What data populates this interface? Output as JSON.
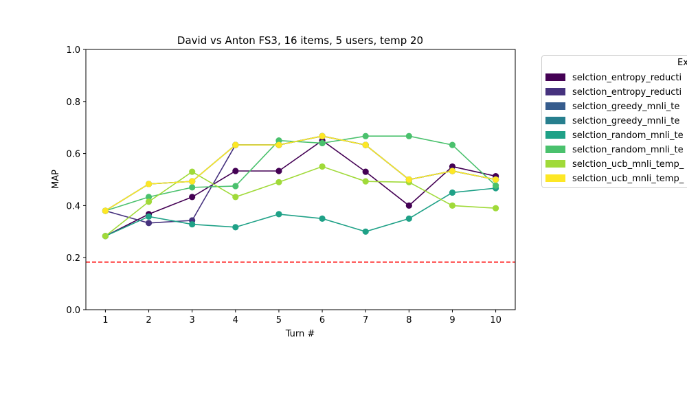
{
  "chart_data": {
    "type": "line",
    "title": "David vs Anton FS3, 16 items, 5 users, temp 20",
    "xlabel": "Turn #",
    "ylabel": "MAP",
    "x": [
      1,
      2,
      3,
      4,
      5,
      6,
      7,
      8,
      9,
      10
    ],
    "xlim": [
      0.55,
      10.45
    ],
    "ylim": [
      0.0,
      1.0
    ],
    "yticks": [
      "0.0",
      "0.2",
      "0.4",
      "0.6",
      "0.8",
      "1.0"
    ],
    "xticks": [
      "1",
      "2",
      "3",
      "4",
      "5",
      "6",
      "7",
      "8",
      "9",
      "10"
    ],
    "grid": false,
    "baseline": {
      "y": 0.183,
      "color": "#ff0000",
      "style": "dashed"
    },
    "legend": {
      "title": "Ex",
      "placement": "outside-right"
    },
    "series": [
      {
        "name": "selction_entropy_reducti",
        "color": "#440154",
        "values": [
          0.283,
          0.367,
          0.433,
          0.533,
          0.533,
          0.65,
          0.53,
          0.4,
          0.55,
          0.513
        ]
      },
      {
        "name": "selction_entropy_reducti",
        "color": "#46327e",
        "values": [
          0.38,
          0.333,
          0.343,
          0.633,
          0.633,
          0.667,
          0.633,
          0.5,
          0.533,
          0.5
        ]
      },
      {
        "name": "selction_greedy_mnli_te",
        "color": "#365c8d",
        "values": [
          0.38,
          0.483,
          0.493,
          0.633,
          0.633,
          0.667,
          0.633,
          0.5,
          0.533,
          0.5
        ]
      },
      {
        "name": "selction_greedy_mnli_te",
        "color": "#277f8e",
        "values": [
          0.38,
          0.483,
          0.493,
          0.633,
          0.633,
          0.667,
          0.633,
          0.5,
          0.533,
          0.5
        ]
      },
      {
        "name": "selction_random_mnli_te",
        "color": "#1fa187",
        "values": [
          0.283,
          0.358,
          0.328,
          0.317,
          0.367,
          0.35,
          0.3,
          0.35,
          0.45,
          0.467
        ]
      },
      {
        "name": "selction_random_mnli_te",
        "color": "#4ac16d",
        "values": [
          0.38,
          0.433,
          0.47,
          0.475,
          0.65,
          0.64,
          0.667,
          0.667,
          0.633,
          0.477
        ]
      },
      {
        "name": "selction_ucb_mnli_temp_",
        "color": "#a0da39",
        "values": [
          0.283,
          0.415,
          0.53,
          0.433,
          0.49,
          0.55,
          0.493,
          0.49,
          0.4,
          0.39
        ]
      },
      {
        "name": "selction_ucb_mnli_temp_",
        "color": "#fde725",
        "values": [
          0.38,
          0.483,
          0.493,
          0.633,
          0.633,
          0.667,
          0.633,
          0.5,
          0.533,
          0.5
        ]
      }
    ]
  }
}
